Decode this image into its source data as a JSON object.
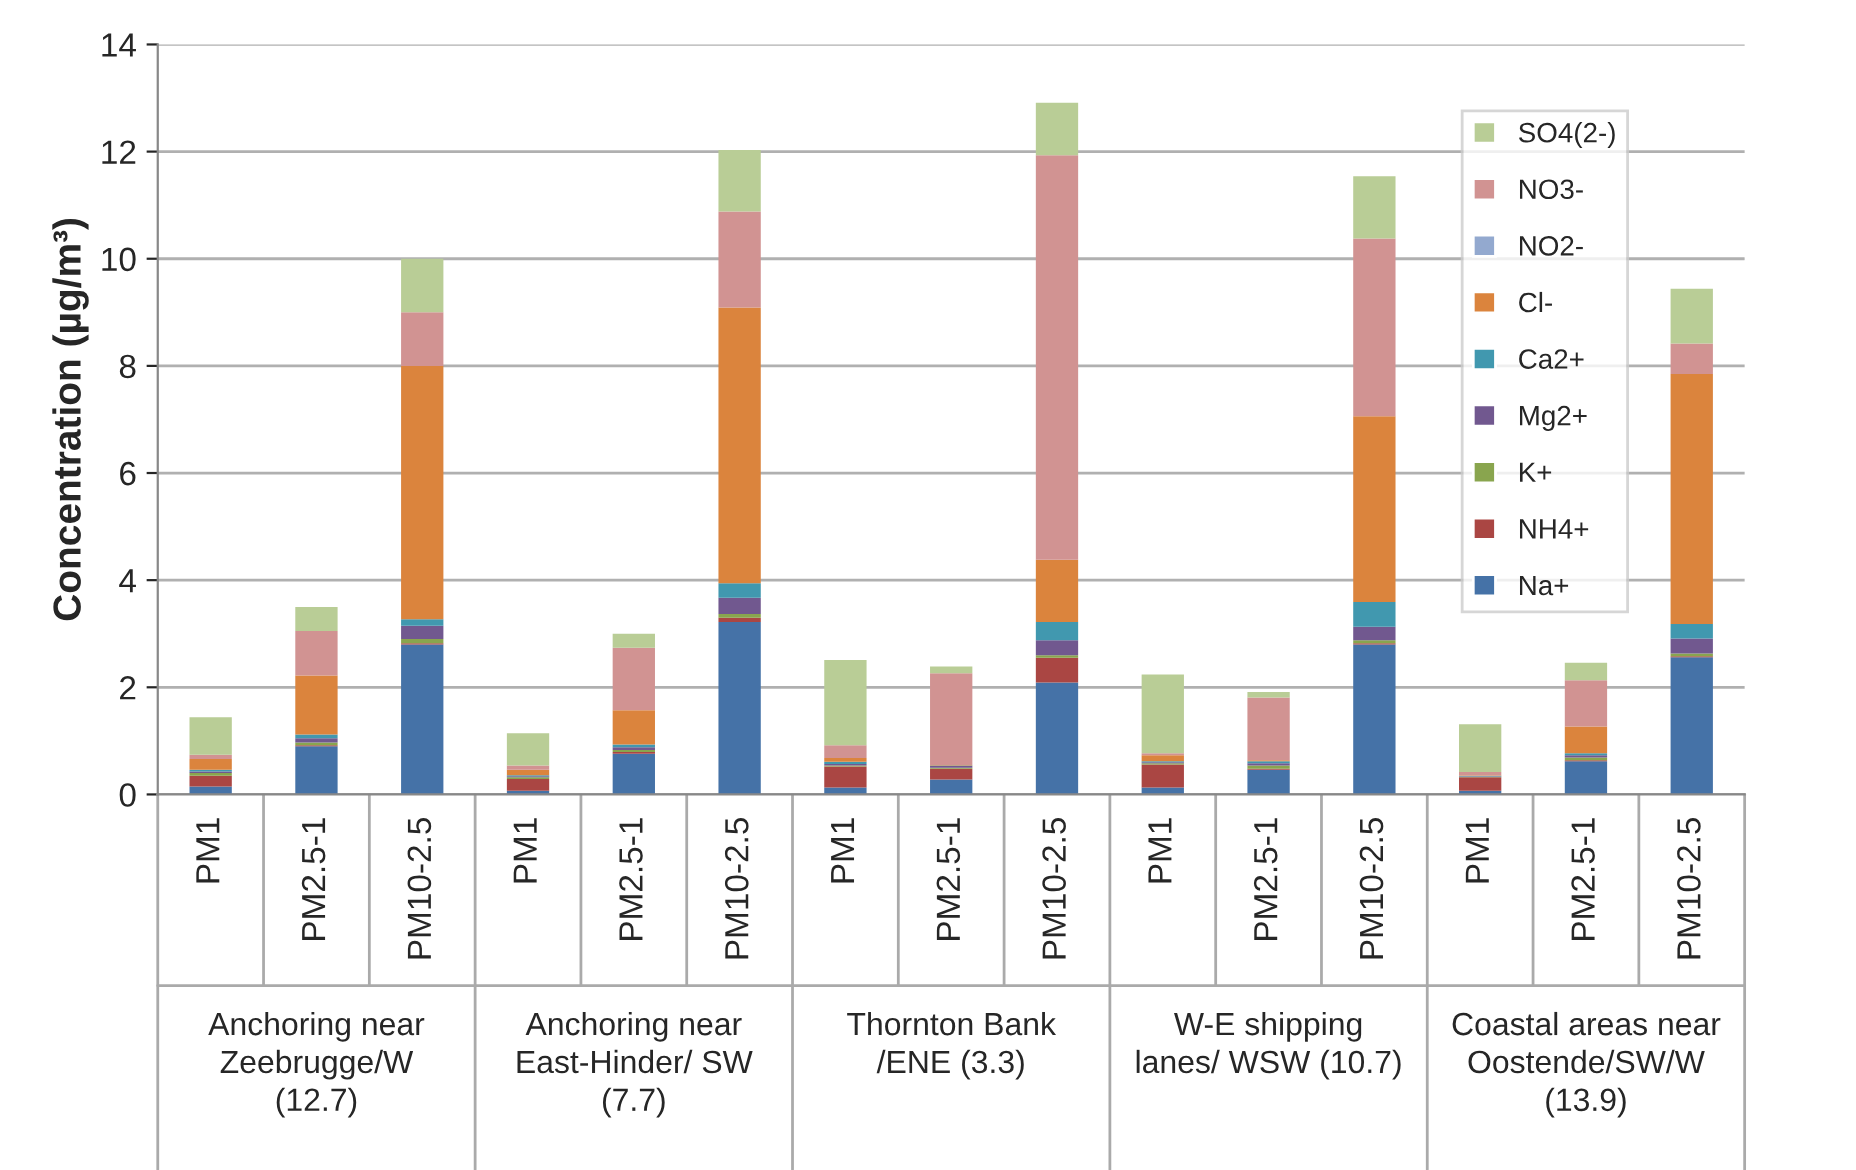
{
  "chart_data": {
    "type": "bar",
    "stacked": true,
    "ylabel": "Concentration (µg/m³)",
    "categories": [
      "PM1",
      "PM2.5-1",
      "PM10-2.5",
      "PM1",
      "PM2.5-1",
      "PM10-2.5",
      "PM1",
      "PM2.5-1",
      "PM10-2.5",
      "PM1",
      "PM2.5-1",
      "PM10-2.5",
      "PM1",
      "PM2.5-1",
      "PM10-2.5"
    ],
    "annotations": [
      "Anchoring near\nZeebrugge/W\n(12.7)",
      "Anchoring near\nEast-Hinder/ SW\n(7.7)",
      "Thornton Bank\n/ENE (3.3)",
      "W-E shipping\nlanes/ WSW (10.7)",
      "Coastal areas near\nOostende/SW/W\n(13.9)"
    ],
    "series": [
      {
        "name": "Na+",
        "color": "#4572a7",
        "values": [
          0.15,
          0.9,
          2.8,
          0.07,
          0.76,
          3.22,
          0.13,
          0.28,
          2.09,
          0.13,
          0.46,
          2.8,
          0.07,
          0.62,
          2.56
        ]
      },
      {
        "name": "NH4+",
        "color": "#aa4643",
        "values": [
          0.2,
          0.02,
          0.02,
          0.22,
          0.03,
          0.08,
          0.39,
          0.2,
          0.46,
          0.43,
          0.02,
          0.02,
          0.25,
          0.02,
          0.02
        ]
      },
      {
        "name": "K+",
        "color": "#89a54e",
        "values": [
          0.05,
          0.05,
          0.08,
          0.03,
          0.04,
          0.07,
          0.02,
          0.02,
          0.05,
          0.02,
          0.06,
          0.06,
          0.01,
          0.05,
          0.05
        ]
      },
      {
        "name": "Mg2+",
        "color": "#71588f",
        "values": [
          0.03,
          0.08,
          0.25,
          0.02,
          0.05,
          0.3,
          0.03,
          0.03,
          0.28,
          0.02,
          0.04,
          0.25,
          0.01,
          0.04,
          0.28
        ]
      },
      {
        "name": "Ca2+",
        "color": "#4198af",
        "values": [
          0.03,
          0.07,
          0.12,
          0.02,
          0.05,
          0.27,
          0.04,
          0.01,
          0.34,
          0.02,
          0.04,
          0.46,
          0.01,
          0.04,
          0.27
        ]
      },
      {
        "name": "Cl-",
        "color": "#db843d",
        "values": [
          0.2,
          1.1,
          4.73,
          0.1,
          0.64,
          5.15,
          0.07,
          0.01,
          1.16,
          0.11,
          0.02,
          3.47,
          0.01,
          0.5,
          4.67
        ]
      },
      {
        "name": "NO2-",
        "color": "#93a9cf",
        "values": [
          0.0,
          0.0,
          0.0,
          0.0,
          0.0,
          0.0,
          0.0,
          0.0,
          0.0,
          0.0,
          0.0,
          0.0,
          0.0,
          0.0,
          0.0
        ]
      },
      {
        "name": "NO3-",
        "color": "#d19392",
        "values": [
          0.08,
          0.83,
          1.0,
          0.08,
          1.17,
          1.79,
          0.24,
          1.71,
          7.55,
          0.04,
          1.17,
          3.32,
          0.06,
          0.86,
          0.57
        ]
      },
      {
        "name": "SO4(2-)",
        "color": "#b9cd96",
        "values": [
          0.7,
          0.45,
          1.0,
          0.6,
          0.26,
          1.15,
          1.59,
          0.13,
          0.98,
          1.47,
          0.1,
          1.16,
          0.89,
          0.33,
          1.02
        ]
      }
    ],
    "ylim": [
      0,
      14
    ],
    "yticks": [
      0,
      2,
      4,
      6,
      8,
      10,
      12,
      14
    ],
    "grid": "y",
    "legend": "top right"
  }
}
